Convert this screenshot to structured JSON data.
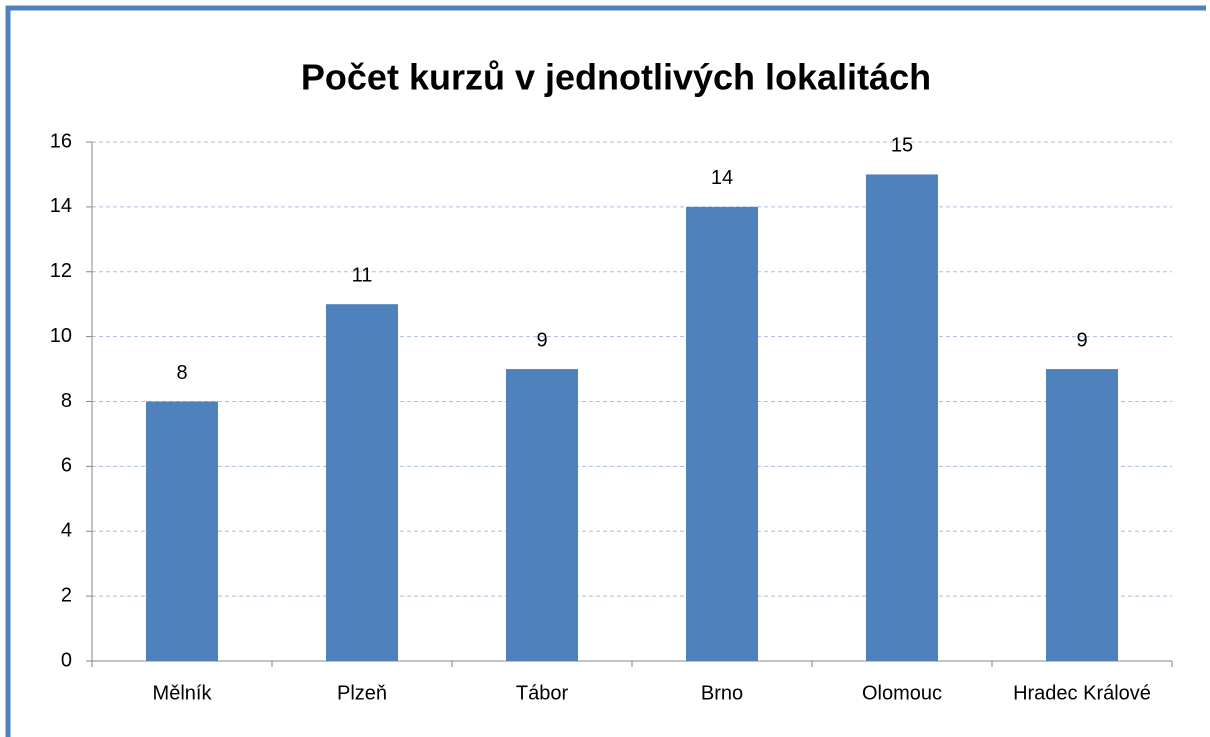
{
  "chart_data": {
    "type": "bar",
    "title": "Počet kurzů v jednotlivých lokalitách",
    "categories": [
      "Mělník",
      "Plzeň",
      "Tábor",
      "Brno",
      "Olomouc",
      "Hradec Králové"
    ],
    "values": [
      8,
      11,
      9,
      14,
      15,
      9
    ],
    "color": "#4f81bd",
    "ylim": [
      0,
      16
    ],
    "yticks": [
      0,
      2,
      4,
      6,
      8,
      10,
      12,
      14,
      16
    ],
    "grid": true
  }
}
